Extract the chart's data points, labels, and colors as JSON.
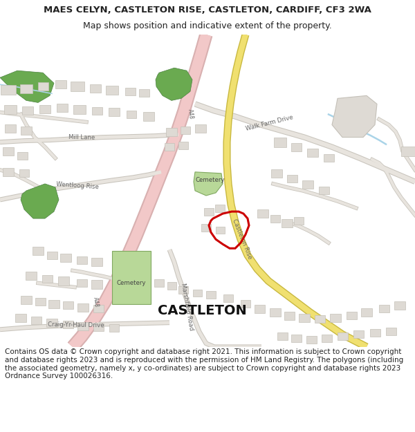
{
  "title_line1": "MAES CELYN, CASTLETON RISE, CASTLETON, CARDIFF, CF3 2WA",
  "title_line2": "Map shows position and indicative extent of the property.",
  "footer_text": "Contains OS data © Crown copyright and database right 2021. This information is subject to Crown copyright and database rights 2023 and is reproduced with the permission of HM Land Registry. The polygons (including the associated geometry, namely x, y co-ordinates) are subject to Crown copyright and database rights 2023 Ordnance Survey 100026316.",
  "background_color": "#ffffff",
  "map_bg_color": "#f2f0ec",
  "road_pink_color": "#f2c8c8",
  "road_pink_outline": "#d8b0b0",
  "road_yellow_color": "#f0e070",
  "road_yellow_outline": "#c8b840",
  "road_gray_color": "#e8e4de",
  "road_gray_outline": "#c8c4bc",
  "building_fill": "#dedad4",
  "building_edge": "#c4c0b8",
  "green_fill": "#6aaa50",
  "green_cemetery": "#b8d898",
  "water_color": "#aad4e8",
  "property_color": "#cc0000",
  "text_dark": "#222222",
  "text_gray": "#666666",
  "title_fontsize": 9.5,
  "subtitle_fontsize": 9.0,
  "footer_fontsize": 7.5,
  "label_fontsize": 6.2,
  "castleton_fontsize": 14
}
